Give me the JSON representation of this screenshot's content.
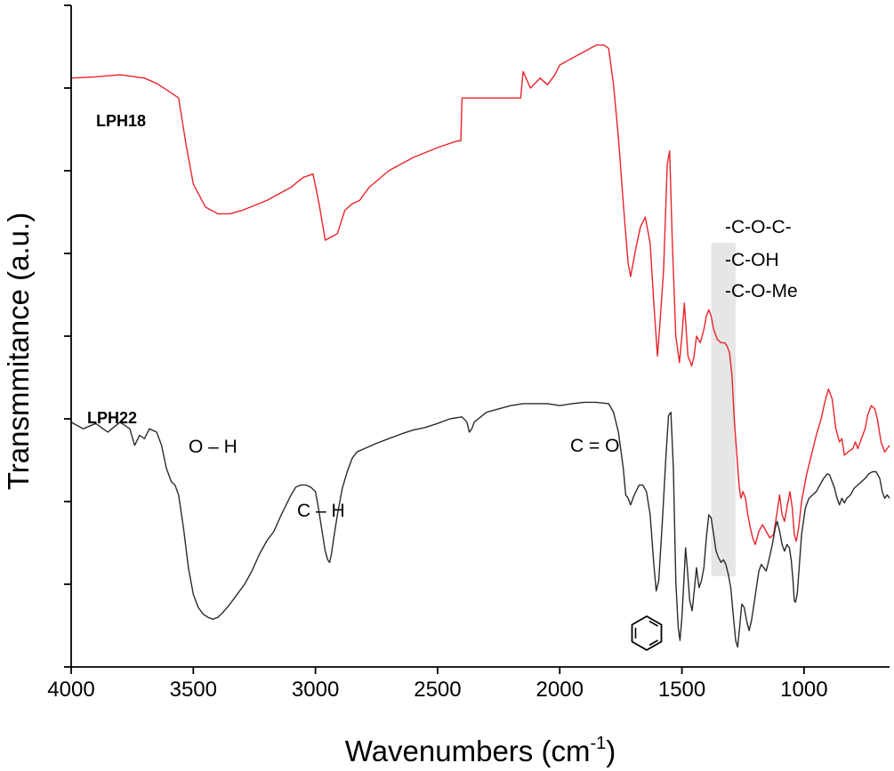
{
  "chart_data": {
    "type": "line",
    "title": "",
    "xlabel": "Wavenumbers (cm",
    "xlabel_superscript": "-1",
    "xlabel_close": ")",
    "ylabel": "Transmmitance (a.u.)",
    "xlim": [
      4000,
      650
    ],
    "x_reversed": true,
    "ylim": [
      0,
      10
    ],
    "ytick_labels": "none",
    "xticks": [
      4000,
      3500,
      3000,
      2500,
      2000,
      1500,
      1000
    ],
    "grid": false,
    "series": [
      {
        "name": "LPH18",
        "label": "LPH18",
        "color": "#e8242b",
        "points": [
          [
            4000,
            8.9
          ],
          [
            3900,
            8.92
          ],
          [
            3800,
            8.95
          ],
          [
            3700,
            8.9
          ],
          [
            3650,
            8.82
          ],
          [
            3600,
            8.7
          ],
          [
            3560,
            8.6
          ],
          [
            3530,
            7.9
          ],
          [
            3500,
            7.3
          ],
          [
            3450,
            6.95
          ],
          [
            3400,
            6.85
          ],
          [
            3350,
            6.85
          ],
          [
            3300,
            6.9
          ],
          [
            3200,
            7.05
          ],
          [
            3100,
            7.25
          ],
          [
            3050,
            7.4
          ],
          [
            3010,
            7.45
          ],
          [
            2985,
            7.0
          ],
          [
            2960,
            6.45
          ],
          [
            2935,
            6.5
          ],
          [
            2910,
            6.55
          ],
          [
            2880,
            6.9
          ],
          [
            2850,
            7.0
          ],
          [
            2820,
            7.05
          ],
          [
            2780,
            7.25
          ],
          [
            2700,
            7.5
          ],
          [
            2600,
            7.7
          ],
          [
            2500,
            7.85
          ],
          [
            2420,
            7.95
          ],
          [
            2405,
            7.95
          ],
          [
            2400,
            8.6
          ],
          [
            2300,
            8.6
          ],
          [
            2200,
            8.6
          ],
          [
            2160,
            8.6
          ],
          [
            2150,
            9.0
          ],
          [
            2120,
            8.75
          ],
          [
            2080,
            8.9
          ],
          [
            2050,
            8.8
          ],
          [
            2020,
            8.95
          ],
          [
            2000,
            9.1
          ],
          [
            1950,
            9.2
          ],
          [
            1900,
            9.3
          ],
          [
            1850,
            9.4
          ],
          [
            1820,
            9.4
          ],
          [
            1800,
            9.35
          ],
          [
            1780,
            8.8
          ],
          [
            1760,
            8.0
          ],
          [
            1740,
            7.0
          ],
          [
            1720,
            6.1
          ],
          [
            1710,
            5.9
          ],
          [
            1690,
            6.3
          ],
          [
            1670,
            6.65
          ],
          [
            1650,
            6.8
          ],
          [
            1630,
            6.4
          ],
          [
            1615,
            5.5
          ],
          [
            1600,
            4.7
          ],
          [
            1590,
            5.2
          ],
          [
            1575,
            6.0
          ],
          [
            1560,
            7.6
          ],
          [
            1550,
            7.8
          ],
          [
            1540,
            6.5
          ],
          [
            1525,
            5.0
          ],
          [
            1510,
            4.6
          ],
          [
            1500,
            5.0
          ],
          [
            1490,
            5.5
          ],
          [
            1475,
            4.7
          ],
          [
            1460,
            4.55
          ],
          [
            1450,
            4.7
          ],
          [
            1440,
            5.0
          ],
          [
            1425,
            4.9
          ],
          [
            1410,
            5.1
          ],
          [
            1400,
            5.3
          ],
          [
            1390,
            5.4
          ],
          [
            1380,
            5.3
          ],
          [
            1370,
            5.1
          ],
          [
            1355,
            4.95
          ],
          [
            1340,
            4.9
          ],
          [
            1325,
            4.9
          ],
          [
            1315,
            4.85
          ],
          [
            1305,
            4.75
          ],
          [
            1295,
            4.4
          ],
          [
            1285,
            3.7
          ],
          [
            1275,
            3.2
          ],
          [
            1265,
            2.7
          ],
          [
            1258,
            2.55
          ],
          [
            1250,
            2.65
          ],
          [
            1240,
            2.55
          ],
          [
            1230,
            2.3
          ],
          [
            1220,
            2.1
          ],
          [
            1210,
            1.95
          ],
          [
            1200,
            1.85
          ],
          [
            1185,
            2.05
          ],
          [
            1170,
            2.15
          ],
          [
            1155,
            2.05
          ],
          [
            1140,
            1.95
          ],
          [
            1125,
            2.0
          ],
          [
            1110,
            2.35
          ],
          [
            1100,
            2.6
          ],
          [
            1090,
            2.3
          ],
          [
            1080,
            2.2
          ],
          [
            1068,
            2.45
          ],
          [
            1058,
            2.65
          ],
          [
            1048,
            2.4
          ],
          [
            1040,
            2.0
          ],
          [
            1032,
            1.9
          ],
          [
            1022,
            2.1
          ],
          [
            1010,
            2.5
          ],
          [
            990,
            2.9
          ],
          [
            970,
            3.2
          ],
          [
            950,
            3.5
          ],
          [
            930,
            3.75
          ],
          [
            915,
            4.0
          ],
          [
            900,
            4.2
          ],
          [
            885,
            4.05
          ],
          [
            870,
            3.6
          ],
          [
            855,
            3.4
          ],
          [
            845,
            3.45
          ],
          [
            835,
            3.2
          ],
          [
            820,
            3.25
          ],
          [
            800,
            3.3
          ],
          [
            790,
            3.4
          ],
          [
            780,
            3.3
          ],
          [
            765,
            3.45
          ],
          [
            750,
            3.6
          ],
          [
            740,
            3.8
          ],
          [
            725,
            3.95
          ],
          [
            710,
            3.9
          ],
          [
            700,
            3.75
          ],
          [
            685,
            3.4
          ],
          [
            670,
            3.25
          ],
          [
            660,
            3.3
          ],
          [
            650,
            3.35
          ]
        ]
      },
      {
        "name": "LPH22",
        "label": "LPH22",
        "color": "#2b2b2b",
        "points": [
          [
            4000,
            3.7
          ],
          [
            3950,
            3.6
          ],
          [
            3900,
            3.68
          ],
          [
            3850,
            3.55
          ],
          [
            3800,
            3.7
          ],
          [
            3760,
            3.6
          ],
          [
            3740,
            3.35
          ],
          [
            3720,
            3.5
          ],
          [
            3700,
            3.45
          ],
          [
            3680,
            3.6
          ],
          [
            3650,
            3.55
          ],
          [
            3630,
            3.35
          ],
          [
            3610,
            3.0
          ],
          [
            3590,
            2.8
          ],
          [
            3575,
            2.75
          ],
          [
            3560,
            2.6
          ],
          [
            3540,
            2.1
          ],
          [
            3520,
            1.5
          ],
          [
            3500,
            1.1
          ],
          [
            3480,
            0.9
          ],
          [
            3460,
            0.8
          ],
          [
            3440,
            0.75
          ],
          [
            3420,
            0.72
          ],
          [
            3400,
            0.75
          ],
          [
            3380,
            0.82
          ],
          [
            3350,
            0.95
          ],
          [
            3320,
            1.1
          ],
          [
            3290,
            1.25
          ],
          [
            3260,
            1.45
          ],
          [
            3230,
            1.7
          ],
          [
            3200,
            1.9
          ],
          [
            3170,
            2.05
          ],
          [
            3140,
            2.3
          ],
          [
            3120,
            2.45
          ],
          [
            3100,
            2.6
          ],
          [
            3080,
            2.72
          ],
          [
            3060,
            2.75
          ],
          [
            3040,
            2.75
          ],
          [
            3020,
            2.72
          ],
          [
            3000,
            2.65
          ],
          [
            2990,
            2.45
          ],
          [
            2975,
            2.1
          ],
          [
            2960,
            1.75
          ],
          [
            2950,
            1.62
          ],
          [
            2942,
            1.58
          ],
          [
            2935,
            1.7
          ],
          [
            2925,
            1.95
          ],
          [
            2910,
            2.3
          ],
          [
            2890,
            2.7
          ],
          [
            2870,
            2.95
          ],
          [
            2850,
            3.15
          ],
          [
            2830,
            3.25
          ],
          [
            2800,
            3.3
          ],
          [
            2750,
            3.38
          ],
          [
            2700,
            3.45
          ],
          [
            2650,
            3.52
          ],
          [
            2600,
            3.58
          ],
          [
            2550,
            3.62
          ],
          [
            2500,
            3.68
          ],
          [
            2450,
            3.75
          ],
          [
            2400,
            3.78
          ],
          [
            2380,
            3.7
          ],
          [
            2370,
            3.55
          ],
          [
            2360,
            3.6
          ],
          [
            2350,
            3.7
          ],
          [
            2300,
            3.85
          ],
          [
            2250,
            3.9
          ],
          [
            2200,
            3.95
          ],
          [
            2150,
            3.98
          ],
          [
            2100,
            3.98
          ],
          [
            2050,
            3.98
          ],
          [
            2000,
            3.95
          ],
          [
            1950,
            3.98
          ],
          [
            1900,
            4.0
          ],
          [
            1850,
            4.0
          ],
          [
            1800,
            3.98
          ],
          [
            1780,
            3.85
          ],
          [
            1760,
            3.55
          ],
          [
            1740,
            3.0
          ],
          [
            1730,
            2.6
          ],
          [
            1720,
            2.55
          ],
          [
            1710,
            2.45
          ],
          [
            1695,
            2.6
          ],
          [
            1675,
            2.75
          ],
          [
            1660,
            2.75
          ],
          [
            1645,
            2.65
          ],
          [
            1630,
            2.3
          ],
          [
            1615,
            1.55
          ],
          [
            1605,
            1.15
          ],
          [
            1595,
            1.3
          ],
          [
            1580,
            2.2
          ],
          [
            1565,
            3.2
          ],
          [
            1555,
            3.8
          ],
          [
            1545,
            3.85
          ],
          [
            1535,
            3.0
          ],
          [
            1525,
            1.3
          ],
          [
            1515,
            0.6
          ],
          [
            1508,
            0.4
          ],
          [
            1500,
            0.75
          ],
          [
            1492,
            1.3
          ],
          [
            1485,
            1.8
          ],
          [
            1478,
            1.5
          ],
          [
            1468,
            1.0
          ],
          [
            1458,
            0.85
          ],
          [
            1448,
            1.2
          ],
          [
            1440,
            1.5
          ],
          [
            1430,
            1.2
          ],
          [
            1420,
            1.3
          ],
          [
            1410,
            1.5
          ],
          [
            1400,
            1.95
          ],
          [
            1390,
            2.3
          ],
          [
            1380,
            2.25
          ],
          [
            1370,
            2.0
          ],
          [
            1360,
            1.75
          ],
          [
            1350,
            1.65
          ],
          [
            1340,
            1.58
          ],
          [
            1330,
            1.62
          ],
          [
            1320,
            1.55
          ],
          [
            1310,
            1.4
          ],
          [
            1300,
            1.2
          ],
          [
            1290,
            0.8
          ],
          [
            1280,
            0.4
          ],
          [
            1272,
            0.3
          ],
          [
            1265,
            0.55
          ],
          [
            1255,
            0.95
          ],
          [
            1245,
            0.9
          ],
          [
            1235,
            0.7
          ],
          [
            1225,
            0.55
          ],
          [
            1215,
            0.7
          ],
          [
            1205,
            0.95
          ],
          [
            1195,
            1.2
          ],
          [
            1185,
            1.45
          ],
          [
            1175,
            1.55
          ],
          [
            1165,
            1.5
          ],
          [
            1155,
            1.45
          ],
          [
            1145,
            1.6
          ],
          [
            1130,
            1.85
          ],
          [
            1118,
            2.1
          ],
          [
            1110,
            2.2
          ],
          [
            1100,
            2.05
          ],
          [
            1090,
            1.85
          ],
          [
            1080,
            1.75
          ],
          [
            1070,
            1.85
          ],
          [
            1060,
            1.8
          ],
          [
            1052,
            1.6
          ],
          [
            1045,
            1.3
          ],
          [
            1040,
            1.0
          ],
          [
            1035,
            0.98
          ],
          [
            1028,
            1.1
          ],
          [
            1020,
            1.5
          ],
          [
            1010,
            2.0
          ],
          [
            995,
            2.4
          ],
          [
            980,
            2.55
          ],
          [
            965,
            2.6
          ],
          [
            950,
            2.65
          ],
          [
            935,
            2.75
          ],
          [
            920,
            2.85
          ],
          [
            905,
            2.92
          ],
          [
            895,
            2.9
          ],
          [
            885,
            2.8
          ],
          [
            875,
            2.7
          ],
          [
            865,
            2.55
          ],
          [
            855,
            2.45
          ],
          [
            845,
            2.55
          ],
          [
            835,
            2.48
          ],
          [
            825,
            2.55
          ],
          [
            810,
            2.6
          ],
          [
            795,
            2.7
          ],
          [
            780,
            2.75
          ],
          [
            765,
            2.8
          ],
          [
            750,
            2.85
          ],
          [
            735,
            2.92
          ],
          [
            720,
            2.95
          ],
          [
            705,
            2.95
          ],
          [
            690,
            2.85
          ],
          [
            680,
            2.65
          ],
          [
            670,
            2.55
          ],
          [
            660,
            2.6
          ],
          [
            650,
            2.55
          ]
        ]
      }
    ],
    "annotations": [
      {
        "text": "O – H",
        "series": "LPH22",
        "near_x": 3450
      },
      {
        "text": "C – H",
        "series": "LPH22",
        "near_x": 2940
      },
      {
        "text": "C = O",
        "series": "LPH22",
        "near_x": 1720
      },
      {
        "text": "-C-O-C-",
        "series": "LPH18",
        "near_x": 1290
      },
      {
        "text": "-C-OH",
        "series": "LPH18",
        "near_x": 1290
      },
      {
        "text": "-C-O-Me",
        "series": "LPH18",
        "near_x": 1290
      }
    ],
    "highlight_band": {
      "x_from": 1380,
      "x_to": 1280,
      "color": "#e6e6e6"
    },
    "benzene_marker": {
      "icon": "benzene-ring-icon",
      "near_x": 1510
    }
  }
}
